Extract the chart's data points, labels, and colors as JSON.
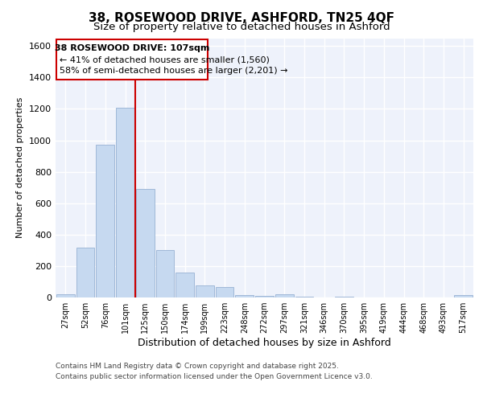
{
  "title1": "38, ROSEWOOD DRIVE, ASHFORD, TN25 4QF",
  "title2": "Size of property relative to detached houses in Ashford",
  "xlabel": "Distribution of detached houses by size in Ashford",
  "ylabel": "Number of detached properties",
  "categories": [
    "27sqm",
    "52sqm",
    "76sqm",
    "101sqm",
    "125sqm",
    "150sqm",
    "174sqm",
    "199sqm",
    "223sqm",
    "248sqm",
    "272sqm",
    "297sqm",
    "321sqm",
    "346sqm",
    "370sqm",
    "395sqm",
    "419sqm",
    "444sqm",
    "468sqm",
    "493sqm",
    "517sqm"
  ],
  "values": [
    20,
    315,
    970,
    1210,
    690,
    300,
    160,
    75,
    65,
    15,
    10,
    20,
    5,
    0,
    5,
    0,
    0,
    0,
    0,
    0,
    15
  ],
  "bar_color": "#c6d9f0",
  "bar_edge_color": "#a0b8d8",
  "red_line_x": 3.5,
  "red_line_label": "38 ROSEWOOD DRIVE: 107sqm",
  "annotation_smaller": "← 41% of detached houses are smaller (1,560)",
  "annotation_larger": "58% of semi-detached houses are larger (2,201) →",
  "annotation_box_color": "#ffffff",
  "annotation_box_edge": "#cc0000",
  "footer1": "Contains HM Land Registry data © Crown copyright and database right 2025.",
  "footer2": "Contains public sector information licensed under the Open Government Licence v3.0.",
  "ylim": [
    0,
    1650
  ],
  "yticks": [
    0,
    200,
    400,
    600,
    800,
    1000,
    1200,
    1400,
    1600
  ],
  "bg_color": "#eef2fb",
  "grid_color": "#ffffff",
  "title1_fontsize": 11,
  "title2_fontsize": 9.5
}
